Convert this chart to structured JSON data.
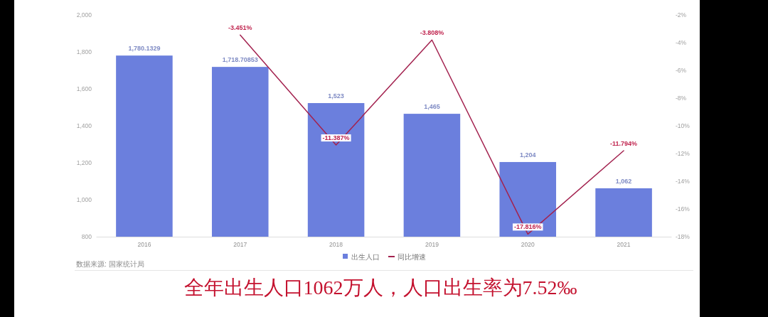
{
  "chart_data": {
    "type": "bar",
    "categories": [
      "2016",
      "2017",
      "2018",
      "2019",
      "2020",
      "2021"
    ],
    "series": [
      {
        "name": "出生人口",
        "color": "#6b7fdd",
        "values": [
          1780.1329,
          1718.70853,
          1523,
          1465,
          1204,
          1062
        ],
        "value_labels": [
          "1,780.1329",
          "1,718.70853",
          "1,523",
          "1,465",
          "1,204",
          "1,062"
        ]
      },
      {
        "name": "同比增速",
        "type": "line",
        "axis": "y2",
        "color": "#a3224f",
        "values": [
          null,
          -3.451,
          -11.387,
          -3.808,
          -17.816,
          -11.794
        ],
        "value_labels": [
          null,
          "-3.451%",
          "-11.387%",
          "-3.808%",
          "-17.816%",
          "-11.794%"
        ]
      }
    ],
    "ylim": [
      800,
      2000
    ],
    "yticks": [
      {
        "value": 800,
        "label": "800"
      },
      {
        "value": 1000,
        "label": "1,000"
      },
      {
        "value": 1200,
        "label": "1,200"
      },
      {
        "value": 1400,
        "label": "1,400"
      },
      {
        "value": 1600,
        "label": "1,600"
      },
      {
        "value": 1800,
        "label": "1,800"
      },
      {
        "value": 2000,
        "label": "2,000"
      }
    ],
    "y2lim": [
      -18,
      -2
    ],
    "y2ticks": [
      {
        "value": -18,
        "label": "-18%"
      },
      {
        "value": -16,
        "label": "-16%"
      },
      {
        "value": -14,
        "label": "-14%"
      },
      {
        "value": -12,
        "label": "-12%"
      },
      {
        "value": -10,
        "label": "-10%"
      },
      {
        "value": -8,
        "label": "-8%"
      },
      {
        "value": -6,
        "label": "-6%"
      },
      {
        "value": -4,
        "label": "-4%"
      },
      {
        "value": -2,
        "label": "-2%"
      }
    ],
    "grid": false,
    "legend": "bottom",
    "annotations": [
      "数据来源: 国家统计局",
      "全年出生人口1062万人，人口出生率为7.52‰"
    ]
  }
}
